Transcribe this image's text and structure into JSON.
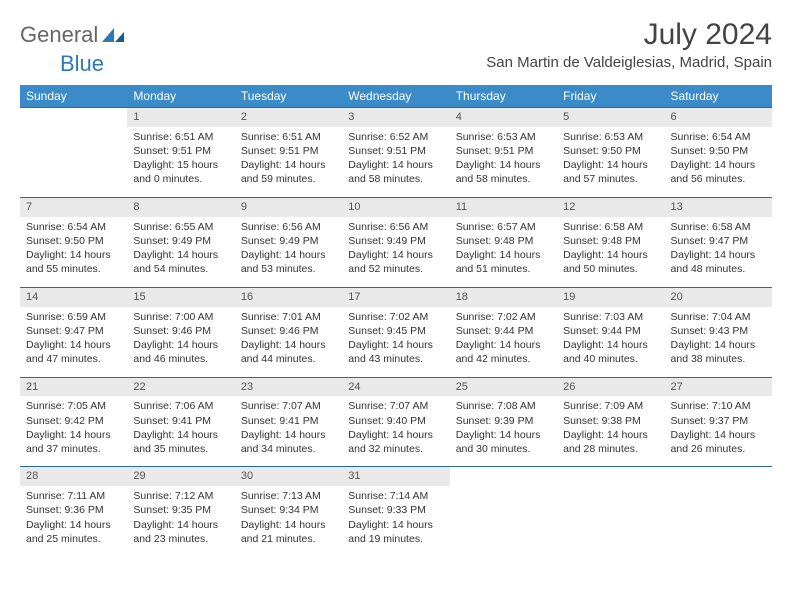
{
  "logo": {
    "text1": "General",
    "text2": "Blue"
  },
  "title": "July 2024",
  "location": "San Martin de Valdeiglesias, Madrid, Spain",
  "colors": {
    "header_bg": "#3b8bc9",
    "daynum_bg": "#e9e9e9",
    "row_border": "#2a6aa0",
    "logo_blue": "#2a7ab8",
    "text": "#333333"
  },
  "weekdays": [
    "Sunday",
    "Monday",
    "Tuesday",
    "Wednesday",
    "Thursday",
    "Friday",
    "Saturday"
  ],
  "weeks": [
    [
      {
        "n": "",
        "sr": "",
        "ss": "",
        "dl": ""
      },
      {
        "n": "1",
        "sr": "Sunrise: 6:51 AM",
        "ss": "Sunset: 9:51 PM",
        "dl": "Daylight: 15 hours and 0 minutes."
      },
      {
        "n": "2",
        "sr": "Sunrise: 6:51 AM",
        "ss": "Sunset: 9:51 PM",
        "dl": "Daylight: 14 hours and 59 minutes."
      },
      {
        "n": "3",
        "sr": "Sunrise: 6:52 AM",
        "ss": "Sunset: 9:51 PM",
        "dl": "Daylight: 14 hours and 58 minutes."
      },
      {
        "n": "4",
        "sr": "Sunrise: 6:53 AM",
        "ss": "Sunset: 9:51 PM",
        "dl": "Daylight: 14 hours and 58 minutes."
      },
      {
        "n": "5",
        "sr": "Sunrise: 6:53 AM",
        "ss": "Sunset: 9:50 PM",
        "dl": "Daylight: 14 hours and 57 minutes."
      },
      {
        "n": "6",
        "sr": "Sunrise: 6:54 AM",
        "ss": "Sunset: 9:50 PM",
        "dl": "Daylight: 14 hours and 56 minutes."
      }
    ],
    [
      {
        "n": "7",
        "sr": "Sunrise: 6:54 AM",
        "ss": "Sunset: 9:50 PM",
        "dl": "Daylight: 14 hours and 55 minutes."
      },
      {
        "n": "8",
        "sr": "Sunrise: 6:55 AM",
        "ss": "Sunset: 9:49 PM",
        "dl": "Daylight: 14 hours and 54 minutes."
      },
      {
        "n": "9",
        "sr": "Sunrise: 6:56 AM",
        "ss": "Sunset: 9:49 PM",
        "dl": "Daylight: 14 hours and 53 minutes."
      },
      {
        "n": "10",
        "sr": "Sunrise: 6:56 AM",
        "ss": "Sunset: 9:49 PM",
        "dl": "Daylight: 14 hours and 52 minutes."
      },
      {
        "n": "11",
        "sr": "Sunrise: 6:57 AM",
        "ss": "Sunset: 9:48 PM",
        "dl": "Daylight: 14 hours and 51 minutes."
      },
      {
        "n": "12",
        "sr": "Sunrise: 6:58 AM",
        "ss": "Sunset: 9:48 PM",
        "dl": "Daylight: 14 hours and 50 minutes."
      },
      {
        "n": "13",
        "sr": "Sunrise: 6:58 AM",
        "ss": "Sunset: 9:47 PM",
        "dl": "Daylight: 14 hours and 48 minutes."
      }
    ],
    [
      {
        "n": "14",
        "sr": "Sunrise: 6:59 AM",
        "ss": "Sunset: 9:47 PM",
        "dl": "Daylight: 14 hours and 47 minutes."
      },
      {
        "n": "15",
        "sr": "Sunrise: 7:00 AM",
        "ss": "Sunset: 9:46 PM",
        "dl": "Daylight: 14 hours and 46 minutes."
      },
      {
        "n": "16",
        "sr": "Sunrise: 7:01 AM",
        "ss": "Sunset: 9:46 PM",
        "dl": "Daylight: 14 hours and 44 minutes."
      },
      {
        "n": "17",
        "sr": "Sunrise: 7:02 AM",
        "ss": "Sunset: 9:45 PM",
        "dl": "Daylight: 14 hours and 43 minutes."
      },
      {
        "n": "18",
        "sr": "Sunrise: 7:02 AM",
        "ss": "Sunset: 9:44 PM",
        "dl": "Daylight: 14 hours and 42 minutes."
      },
      {
        "n": "19",
        "sr": "Sunrise: 7:03 AM",
        "ss": "Sunset: 9:44 PM",
        "dl": "Daylight: 14 hours and 40 minutes."
      },
      {
        "n": "20",
        "sr": "Sunrise: 7:04 AM",
        "ss": "Sunset: 9:43 PM",
        "dl": "Daylight: 14 hours and 38 minutes."
      }
    ],
    [
      {
        "n": "21",
        "sr": "Sunrise: 7:05 AM",
        "ss": "Sunset: 9:42 PM",
        "dl": "Daylight: 14 hours and 37 minutes."
      },
      {
        "n": "22",
        "sr": "Sunrise: 7:06 AM",
        "ss": "Sunset: 9:41 PM",
        "dl": "Daylight: 14 hours and 35 minutes."
      },
      {
        "n": "23",
        "sr": "Sunrise: 7:07 AM",
        "ss": "Sunset: 9:41 PM",
        "dl": "Daylight: 14 hours and 34 minutes."
      },
      {
        "n": "24",
        "sr": "Sunrise: 7:07 AM",
        "ss": "Sunset: 9:40 PM",
        "dl": "Daylight: 14 hours and 32 minutes."
      },
      {
        "n": "25",
        "sr": "Sunrise: 7:08 AM",
        "ss": "Sunset: 9:39 PM",
        "dl": "Daylight: 14 hours and 30 minutes."
      },
      {
        "n": "26",
        "sr": "Sunrise: 7:09 AM",
        "ss": "Sunset: 9:38 PM",
        "dl": "Daylight: 14 hours and 28 minutes."
      },
      {
        "n": "27",
        "sr": "Sunrise: 7:10 AM",
        "ss": "Sunset: 9:37 PM",
        "dl": "Daylight: 14 hours and 26 minutes."
      }
    ],
    [
      {
        "n": "28",
        "sr": "Sunrise: 7:11 AM",
        "ss": "Sunset: 9:36 PM",
        "dl": "Daylight: 14 hours and 25 minutes."
      },
      {
        "n": "29",
        "sr": "Sunrise: 7:12 AM",
        "ss": "Sunset: 9:35 PM",
        "dl": "Daylight: 14 hours and 23 minutes."
      },
      {
        "n": "30",
        "sr": "Sunrise: 7:13 AM",
        "ss": "Sunset: 9:34 PM",
        "dl": "Daylight: 14 hours and 21 minutes."
      },
      {
        "n": "31",
        "sr": "Sunrise: 7:14 AM",
        "ss": "Sunset: 9:33 PM",
        "dl": "Daylight: 14 hours and 19 minutes."
      },
      {
        "n": "",
        "sr": "",
        "ss": "",
        "dl": ""
      },
      {
        "n": "",
        "sr": "",
        "ss": "",
        "dl": ""
      },
      {
        "n": "",
        "sr": "",
        "ss": "",
        "dl": ""
      }
    ]
  ]
}
